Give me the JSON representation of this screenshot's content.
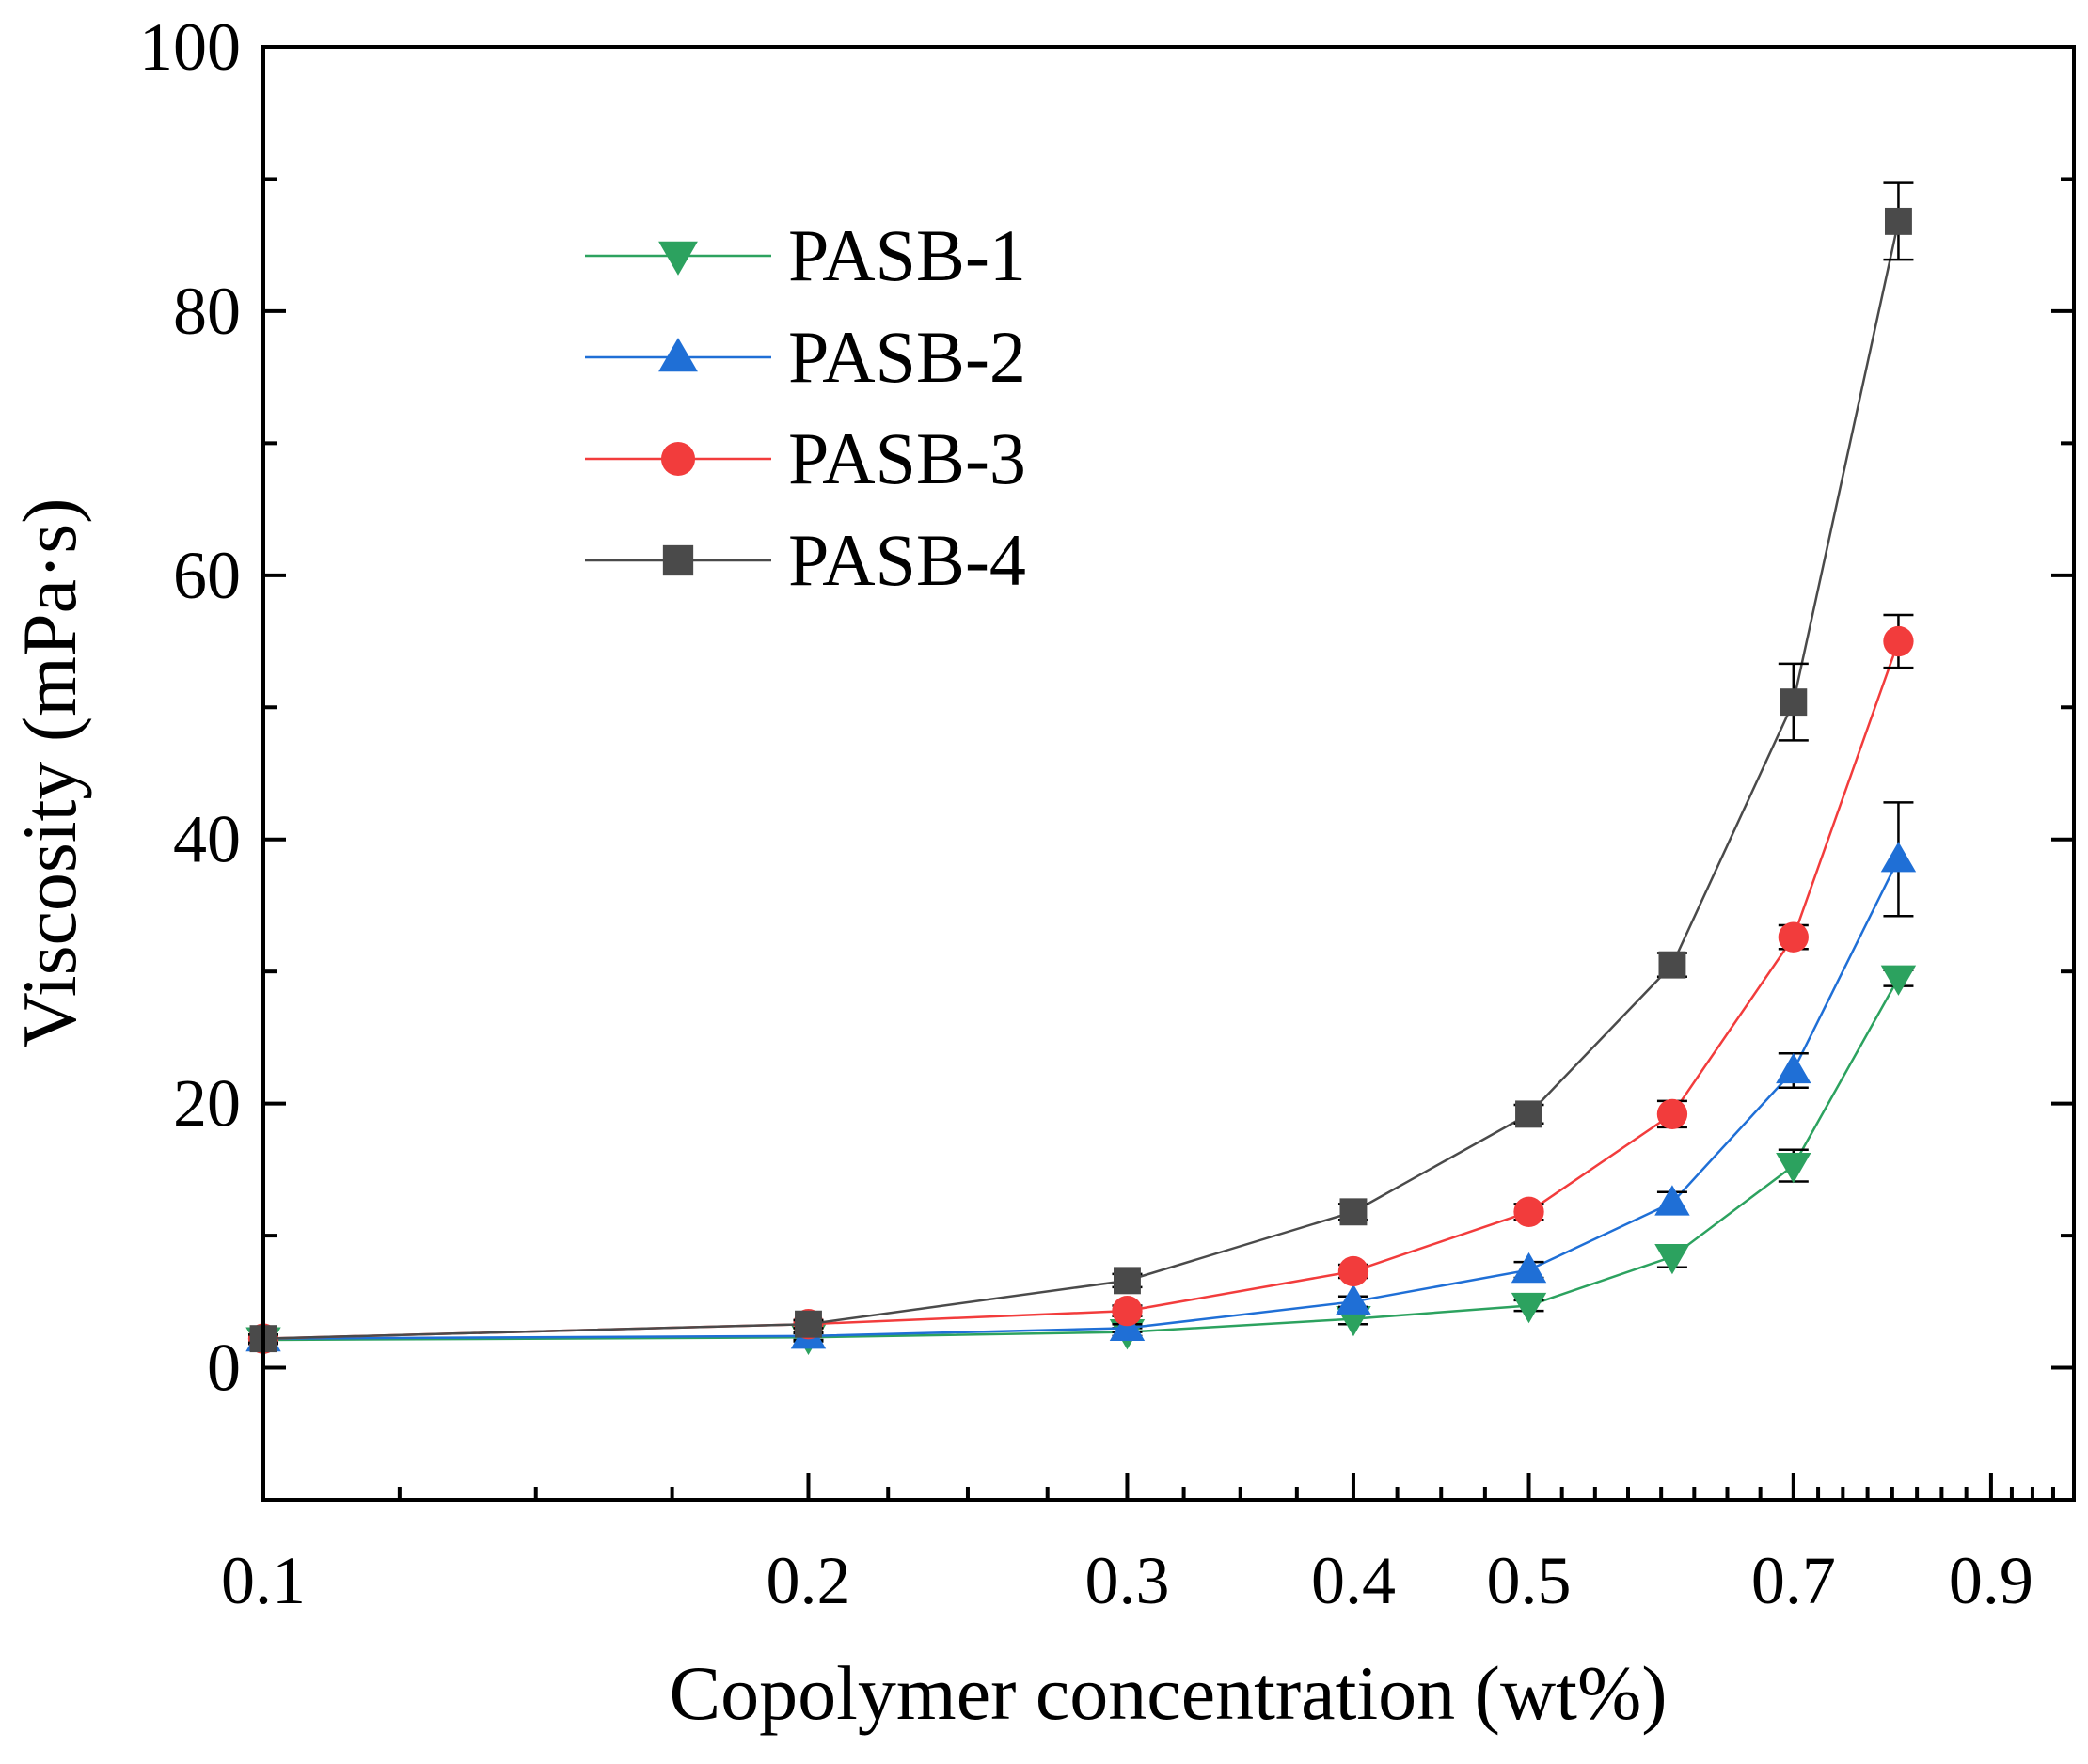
{
  "chart_data": {
    "type": "line",
    "title": "",
    "xlabel": "Copolymer concentration (wt%)",
    "ylabel": "Viscosity (mPa·s)",
    "xscale": "log",
    "xlim": [
      0.1,
      1.0
    ],
    "ylim": [
      -10,
      100
    ],
    "x_tick_labels": [
      "0.1",
      "0.2",
      "0.3",
      "0.4",
      "0.5",
      "0.7",
      "0.9"
    ],
    "x_tick_values": [
      0.1,
      0.2,
      0.3,
      0.4,
      0.5,
      0.7,
      0.9
    ],
    "y_tick_labels": [
      "0",
      "20",
      "40",
      "60",
      "80",
      "100"
    ],
    "y_tick_values": [
      0,
      20,
      40,
      60,
      80,
      100
    ],
    "legend_position": "top-left",
    "series": [
      {
        "name": "PASB-1",
        "color": "#2ca25f",
        "marker": "triangle-down",
        "x": [
          0.1,
          0.2,
          0.3,
          0.4,
          0.5,
          0.6,
          0.7,
          0.8
        ],
        "y": [
          2.1,
          2.3,
          2.7,
          3.7,
          4.7,
          8.4,
          15.3,
          29.5
        ],
        "err": [
          0.3,
          0.3,
          0.3,
          0.4,
          0.4,
          0.8,
          1.2,
          0.6
        ]
      },
      {
        "name": "PASB-2",
        "color": "#1f6fd6",
        "marker": "triangle-up",
        "x": [
          0.1,
          0.2,
          0.3,
          0.4,
          0.5,
          0.6,
          0.7,
          0.8
        ],
        "y": [
          2.2,
          2.4,
          3.0,
          5.0,
          7.4,
          12.5,
          22.5,
          38.5
        ],
        "err": [
          0.3,
          0.3,
          0.3,
          0.4,
          0.6,
          0.8,
          1.3,
          4.3
        ]
      },
      {
        "name": "PASB-3",
        "color": "#f23c3c",
        "marker": "circle",
        "x": [
          0.1,
          0.2,
          0.3,
          0.4,
          0.5,
          0.6,
          0.7,
          0.8
        ],
        "y": [
          2.2,
          3.3,
          4.3,
          7.3,
          11.8,
          19.2,
          32.6,
          55.0
        ],
        "err": [
          0.3,
          0.3,
          0.4,
          0.5,
          0.6,
          1.0,
          0.9,
          2.0
        ]
      },
      {
        "name": "PASB-4",
        "color": "#4a4a4a",
        "marker": "square",
        "x": [
          0.1,
          0.2,
          0.3,
          0.4,
          0.5,
          0.6,
          0.7,
          0.8
        ],
        "y": [
          2.2,
          3.3,
          6.6,
          11.8,
          19.2,
          30.5,
          50.4,
          86.8
        ],
        "err": [
          0.3,
          0.3,
          0.5,
          0.6,
          0.7,
          0.9,
          2.9,
          2.9
        ]
      }
    ]
  }
}
